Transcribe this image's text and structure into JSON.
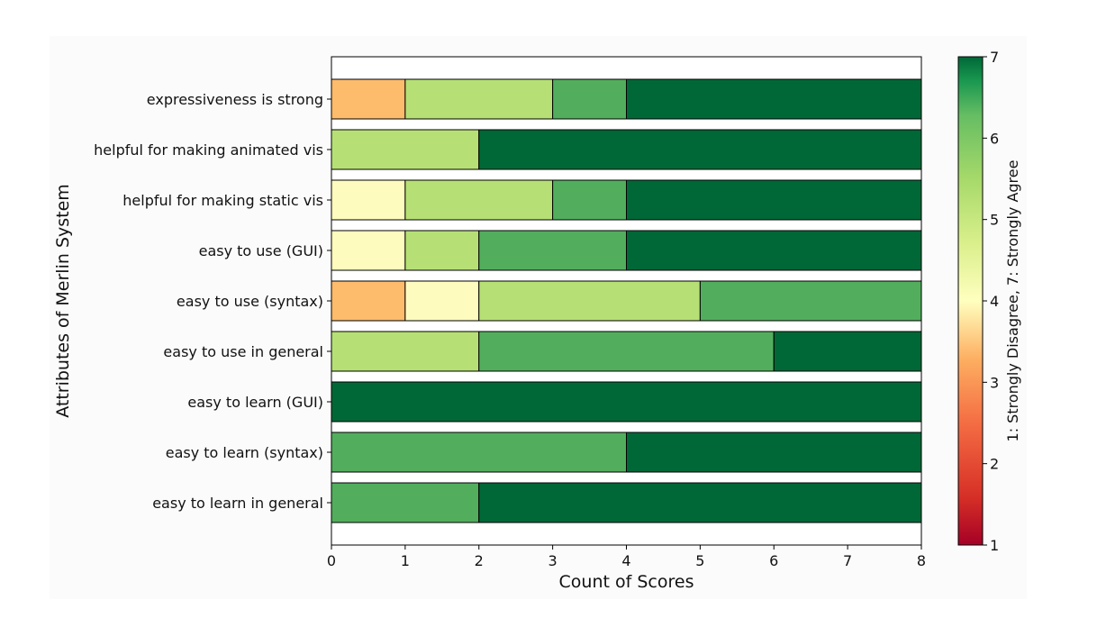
{
  "chart_data": {
    "type": "bar",
    "orientation": "horizontal",
    "stacked": true,
    "xlabel": "Count of Scores",
    "ylabel": "Attributes of Merlin System",
    "xlim": [
      0,
      8
    ],
    "xticks": [
      "0",
      "1",
      "2",
      "3",
      "4",
      "5",
      "6",
      "7",
      "8"
    ],
    "grid": false,
    "categories": [
      "expressiveness is strong",
      "helpful for making animated vis",
      "helpful for making static vis",
      "easy to use (GUI)",
      "easy to use (syntax)",
      "easy to use in general",
      "easy to learn (GUI)",
      "easy to learn (syntax)",
      "easy to learn in general"
    ],
    "segments": [
      [
        {
          "score": 3,
          "count": 1
        },
        {
          "score": 5,
          "count": 2
        },
        {
          "score": 6,
          "count": 1
        },
        {
          "score": 7,
          "count": 4
        }
      ],
      [
        {
          "score": 5,
          "count": 2
        },
        {
          "score": 7,
          "count": 6
        }
      ],
      [
        {
          "score": 4,
          "count": 1
        },
        {
          "score": 5,
          "count": 2
        },
        {
          "score": 6,
          "count": 1
        },
        {
          "score": 7,
          "count": 4
        }
      ],
      [
        {
          "score": 4,
          "count": 1
        },
        {
          "score": 5,
          "count": 1
        },
        {
          "score": 6,
          "count": 2
        },
        {
          "score": 7,
          "count": 4
        }
      ],
      [
        {
          "score": 3,
          "count": 1
        },
        {
          "score": 4,
          "count": 1
        },
        {
          "score": 5,
          "count": 3
        },
        {
          "score": 6,
          "count": 3
        }
      ],
      [
        {
          "score": 5,
          "count": 2
        },
        {
          "score": 6,
          "count": 4
        },
        {
          "score": 7,
          "count": 2
        }
      ],
      [
        {
          "score": 7,
          "count": 8
        }
      ],
      [
        {
          "score": 6,
          "count": 4
        },
        {
          "score": 7,
          "count": 4
        }
      ],
      [
        {
          "score": 6,
          "count": 2
        },
        {
          "score": 7,
          "count": 6
        }
      ]
    ],
    "score_colors": {
      "1": "#a50026",
      "2": "#e24a33",
      "3": "#fdbb6c",
      "4": "#fefbbe",
      "5": "#b6e075",
      "6": "#52ae5d",
      "7": "#006837"
    },
    "colorbar": {
      "label": "1: Strongly Disagree, 7: Strongly Agree",
      "range": [
        1,
        7
      ],
      "ticks": [
        "1",
        "2",
        "3",
        "4",
        "5",
        "6",
        "7"
      ],
      "colormap": "RdYlGn"
    }
  }
}
